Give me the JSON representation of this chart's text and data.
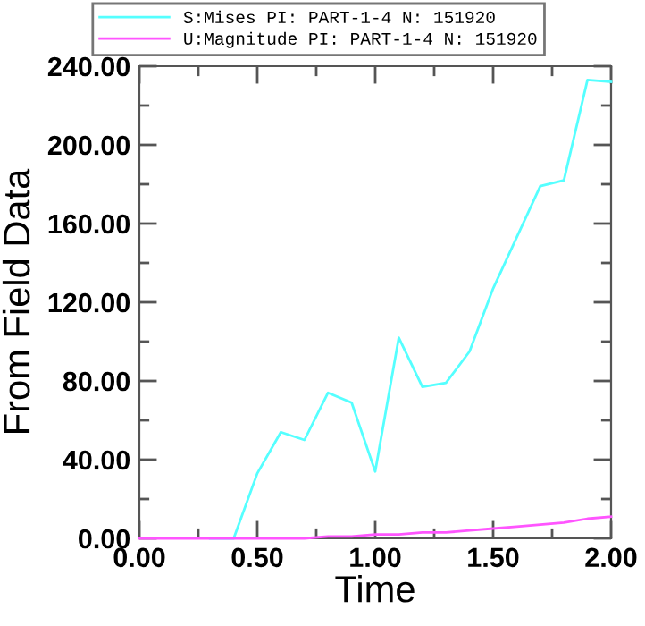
{
  "chart_data": {
    "type": "line",
    "xlabel": "Time",
    "ylabel": "From Field Data",
    "x": [
      0,
      0.1,
      0.2,
      0.3,
      0.4,
      0.5,
      0.6,
      0.7,
      0.8,
      0.9,
      1.0,
      1.1,
      1.2,
      1.3,
      1.4,
      1.5,
      1.6,
      1.7,
      1.8,
      1.9,
      2.0
    ],
    "series": [
      {
        "name": "S:Mises PI: PART-1-4 N: 151920",
        "color": "#55ffff",
        "values": [
          null,
          null,
          null,
          0,
          0,
          33,
          54,
          50,
          74,
          69,
          34,
          102,
          77,
          79,
          95,
          127,
          153,
          179,
          182,
          233,
          232
        ]
      },
      {
        "name": "U:Magnitude PI: PART-1-4 N: 151920",
        "color": "#ff55ff",
        "values": [
          0,
          0,
          0,
          0,
          0,
          0,
          0,
          0,
          1,
          1,
          2,
          2,
          3,
          3,
          4,
          5,
          6,
          7,
          8,
          10,
          11
        ]
      }
    ],
    "xlim": [
      0,
      2
    ],
    "ylim": [
      0,
      240
    ],
    "xticks": [
      {
        "value": 0,
        "label": "0.00"
      },
      {
        "value": 0.25,
        "label": null
      },
      {
        "value": 0.5,
        "label": "0.50"
      },
      {
        "value": 0.75,
        "label": null
      },
      {
        "value": 1,
        "label": "1.00"
      },
      {
        "value": 1.25,
        "label": null
      },
      {
        "value": 1.5,
        "label": "1.50"
      },
      {
        "value": 1.75,
        "label": null
      },
      {
        "value": 2,
        "label": "2.00"
      }
    ],
    "yticks": [
      {
        "value": 0,
        "label": "0.00"
      },
      {
        "value": 20,
        "label": null
      },
      {
        "value": 40,
        "label": "40.00"
      },
      {
        "value": 60,
        "label": null
      },
      {
        "value": 80,
        "label": "80.00"
      },
      {
        "value": 100,
        "label": null
      },
      {
        "value": 120,
        "label": "120.00"
      },
      {
        "value": 140,
        "label": null
      },
      {
        "value": 160,
        "label": "160.00"
      },
      {
        "value": 180,
        "label": null
      },
      {
        "value": 200,
        "label": "200.00"
      },
      {
        "value": 220,
        "label": null
      },
      {
        "value": 240,
        "label": "240.00"
      }
    ],
    "grid": false,
    "legend": "top",
    "marker": "none",
    "line_style": "solid"
  }
}
